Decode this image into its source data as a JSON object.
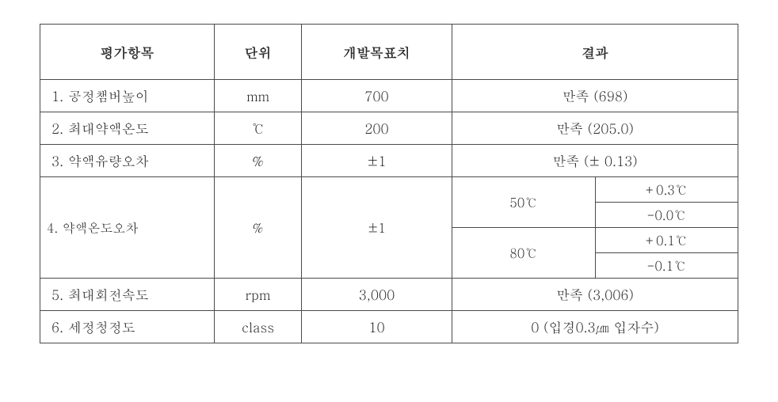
{
  "headers": {
    "col1": "평가항목",
    "col2": "단위",
    "col3": "개발목표치",
    "col4": "결과"
  },
  "rows": [
    {
      "item": "1. 공정챔버높이",
      "unit": "mm",
      "target": "700",
      "result": "만족 (698)"
    },
    {
      "item": "2. 최대약액온도",
      "unit": "℃",
      "target": "200",
      "result": "만족 (205.0)"
    },
    {
      "item": "3. 약액유량오차",
      "unit": "%",
      "target": "±1",
      "result": "만족 (± 0.13)"
    },
    {
      "item": "4. 약액온도오차",
      "unit": "%",
      "target": "±1",
      "sub": [
        {
          "cond": "50℃",
          "v1": "+0.3℃",
          "v2": "-0.0℃"
        },
        {
          "cond": "80℃",
          "v1": "+0.1℃",
          "v2": "-0.1℃"
        }
      ]
    },
    {
      "item": "5. 최대회전속도",
      "unit": "rpm",
      "target": "3,000",
      "result": "만족 (3,006)"
    },
    {
      "item": "6. 세정청정도",
      "unit": "class",
      "target": "10",
      "result": "0 (입경0.3㎛ 입자수)"
    }
  ],
  "style": {
    "border_color": "#4a4a4a",
    "text_color": "#2a2a2a",
    "background": "#ffffff",
    "header_fontsize": 17,
    "body_fontsize": 17
  }
}
